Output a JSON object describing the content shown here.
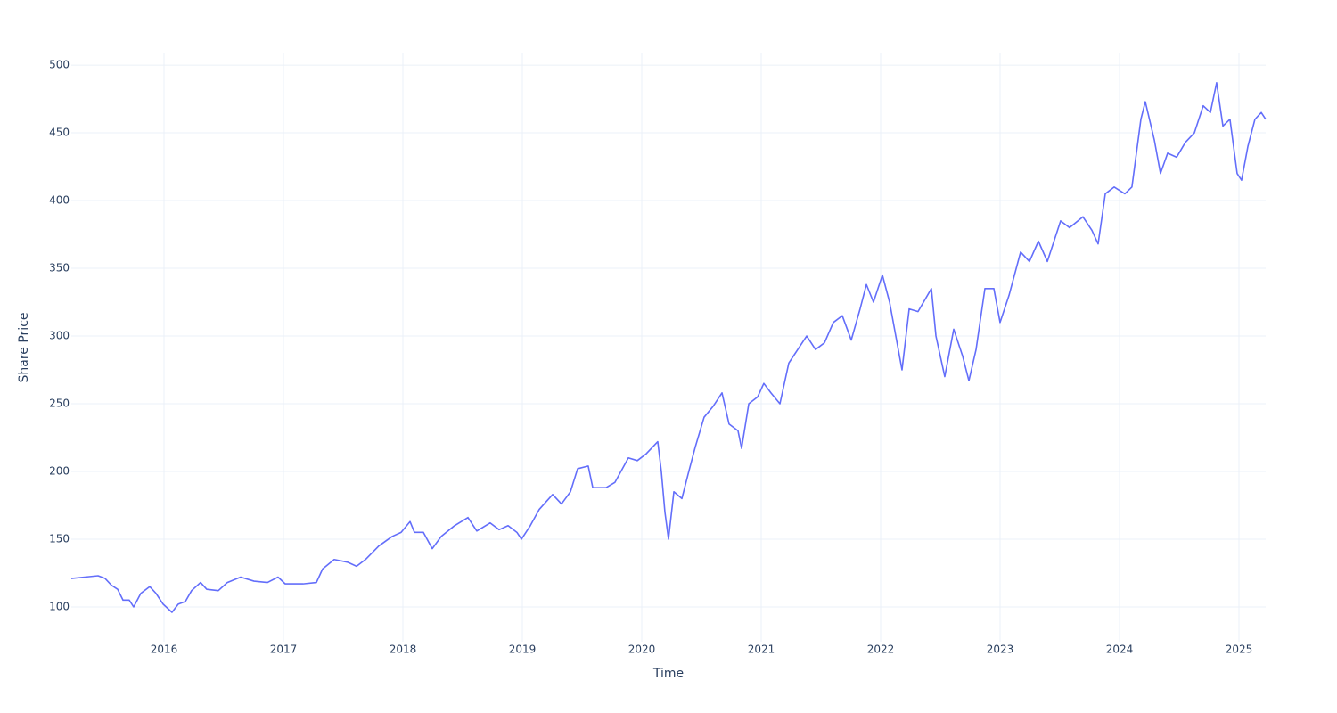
{
  "chart_data": {
    "type": "line",
    "x_label": "Time",
    "y_label": "Share Price",
    "xlim": [
      2015.224,
      2025.224
    ],
    "xticks": [
      2016,
      2017,
      2018,
      2019,
      2020,
      2021,
      2022,
      2023,
      2024,
      2025
    ],
    "ylim": [
      74.3,
      508.6
    ],
    "yticks": [
      100,
      150,
      200,
      250,
      300,
      350,
      400,
      450,
      500
    ],
    "grid": true,
    "series": [
      {
        "color": "#636efa",
        "x": [
          2015.224,
          2015.336,
          2015.448,
          2015.507,
          2015.56,
          2015.612,
          2015.657,
          2015.709,
          2015.746,
          2015.806,
          2015.881,
          2015.933,
          2015.993,
          2016.067,
          2016.119,
          2016.179,
          2016.231,
          2016.306,
          2016.358,
          2016.455,
          2016.53,
          2016.642,
          2016.754,
          2016.866,
          2016.955,
          2017.015,
          2017.164,
          2017.276,
          2017.328,
          2017.425,
          2017.537,
          2017.612,
          2017.687,
          2017.799,
          2017.91,
          2017.985,
          2018.06,
          2018.097,
          2018.172,
          2018.246,
          2018.321,
          2018.433,
          2018.545,
          2018.619,
          2018.731,
          2018.806,
          2018.881,
          2018.955,
          2018.993,
          2019.067,
          2019.142,
          2019.254,
          2019.328,
          2019.403,
          2019.463,
          2019.552,
          2019.59,
          2019.701,
          2019.776,
          2019.888,
          2019.963,
          2020.037,
          2020.134,
          2020.164,
          2020.194,
          2020.224,
          2020.269,
          2020.336,
          2020.388,
          2020.448,
          2020.522,
          2020.597,
          2020.672,
          2020.731,
          2020.806,
          2020.836,
          2020.896,
          2020.97,
          2021.022,
          2021.082,
          2021.157,
          2021.231,
          2021.306,
          2021.381,
          2021.455,
          2021.53,
          2021.604,
          2021.679,
          2021.754,
          2021.828,
          2021.881,
          2021.94,
          2022.015,
          2022.075,
          2022.127,
          2022.179,
          2022.239,
          2022.313,
          2022.425,
          2022.463,
          2022.537,
          2022.612,
          2022.687,
          2022.739,
          2022.799,
          2022.873,
          2022.948,
          2023.0,
          2023.075,
          2023.172,
          2023.246,
          2023.321,
          2023.396,
          2023.507,
          2023.582,
          2023.694,
          2023.769,
          2023.821,
          2023.881,
          2023.955,
          2024.045,
          2024.104,
          2024.179,
          2024.216,
          2024.291,
          2024.343,
          2024.403,
          2024.478,
          2024.552,
          2024.627,
          2024.701,
          2024.761,
          2024.813,
          2024.866,
          2024.925,
          2024.985,
          2025.022,
          2025.075,
          2025.134,
          2025.187,
          2025.224
        ],
        "values": [
          121,
          122,
          123,
          121,
          116,
          113,
          105,
          105,
          100,
          110,
          115,
          110,
          102,
          96,
          102,
          104,
          112,
          118,
          113,
          112,
          118,
          122,
          119,
          118,
          122,
          117,
          117,
          118,
          128,
          135,
          133,
          130,
          135,
          145,
          152,
          155,
          163,
          155,
          155,
          143,
          152,
          160,
          166,
          156,
          162,
          157,
          160,
          155,
          150,
          160,
          172,
          183,
          176,
          185,
          202,
          204,
          188,
          188,
          192,
          210,
          208,
          213,
          222,
          200,
          170,
          150,
          185,
          180,
          198,
          218,
          240,
          248,
          258,
          235,
          230,
          217,
          250,
          255,
          265,
          258,
          250,
          280,
          290,
          300,
          290,
          295,
          310,
          315,
          297,
          320,
          338,
          325,
          345,
          325,
          300,
          275,
          320,
          318,
          335,
          300,
          270,
          305,
          285,
          267,
          290,
          335,
          335,
          310,
          330,
          362,
          355,
          370,
          355,
          385,
          380,
          388,
          378,
          368,
          405,
          410,
          405,
          410,
          460,
          473,
          445,
          420,
          435,
          432,
          443,
          450,
          470,
          465,
          487,
          455,
          460,
          420,
          415,
          440,
          460,
          465,
          460
        ]
      }
    ]
  }
}
